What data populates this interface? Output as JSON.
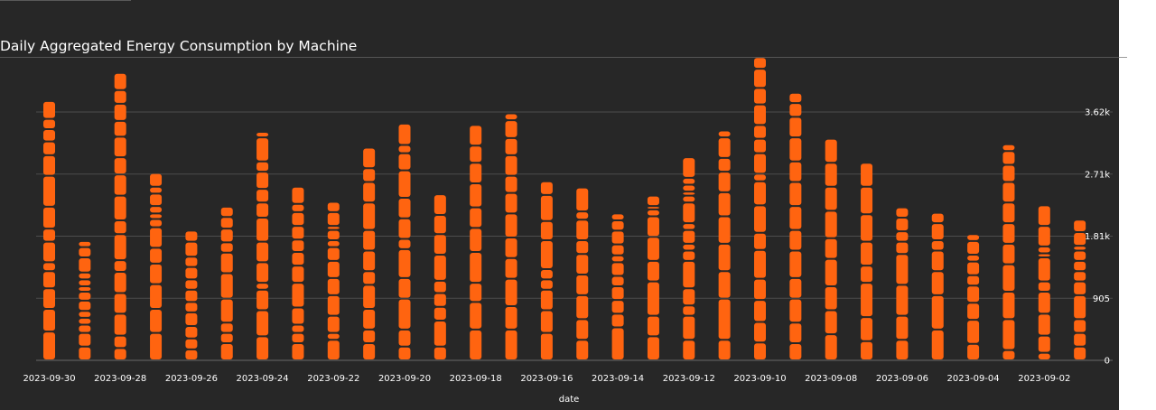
{
  "chart_data": {
    "type": "bar",
    "stacked": true,
    "title": "Daily Aggregated Energy Consumption by Machine",
    "xlabel": "date",
    "ylabel": "",
    "ylim": [
      0,
      3620
    ],
    "yticks": [
      "0",
      "905",
      "1.81k",
      "2.71k",
      "3.62k"
    ],
    "ytick_values": [
      0,
      905,
      1810,
      2715,
      3620
    ],
    "grid": true,
    "legend": "none",
    "bar_color": "#ff6410",
    "categories": [
      "2023-09-30",
      "2023-09-29",
      "2023-09-28",
      "2023-09-27",
      "2023-09-26",
      "2023-09-25",
      "2023-09-24",
      "2023-09-23",
      "2023-09-22",
      "2023-09-21",
      "2023-09-20",
      "2023-09-19",
      "2023-09-18",
      "2023-09-17",
      "2023-09-16",
      "2023-09-15",
      "2023-09-14",
      "2023-09-13",
      "2023-09-12",
      "2023-09-11",
      "2023-09-10",
      "2023-09-09",
      "2023-09-08",
      "2023-09-07",
      "2023-09-06",
      "2023-09-05",
      "2023-09-04",
      "2023-09-03",
      "2023-09-02",
      "2023-09-01"
    ],
    "x_tick_labels": [
      "2023-09-30",
      "2023-09-28",
      "2023-09-26",
      "2023-09-24",
      "2023-09-22",
      "2023-09-20",
      "2023-09-18",
      "2023-09-16",
      "2023-09-14",
      "2023-09-12",
      "2023-09-10",
      "2023-09-08",
      "2023-09-06",
      "2023-09-04",
      "2023-09-02"
    ],
    "segments": [
      [
        420,
        330,
        300,
        250,
        130,
        300,
        190,
        320,
        450,
        300,
        200,
        180,
        150,
        260
      ],
      [
        200,
        200,
        120,
        100,
        100,
        150,
        130,
        80,
        100,
        100,
        220,
        150,
        90
      ],
      [
        180,
        180,
        320,
        300,
        310,
        170,
        380,
        200,
        360,
        310,
        250,
        300,
        230,
        250,
        200,
        250
      ],
      [
        400,
        350,
        360,
        300,
        230,
        300,
        120,
        80,
        110,
        180,
        100,
        200
      ],
      [
        160,
        160,
        180,
        200,
        150,
        180,
        150,
        180,
        150,
        220,
        160
      ],
      [
        250,
        150,
        150,
        350,
        370,
        300,
        150,
        200,
        170,
        150
      ],
      [
        350,
        380,
        300,
        100,
        300,
        300,
        350,
        220,
        200,
        250,
        150,
        350,
        80
      ],
      [
        250,
        150,
        120,
        250,
        360,
        250,
        200,
        180,
        200,
        200,
        120,
        250
      ],
      [
        300,
        100,
        250,
        300,
        250,
        250,
        200,
        100,
        150,
        60,
        200,
        150
      ],
      [
        250,
        200,
        300,
        350,
        200,
        300,
        300,
        400,
        300,
        200,
        300
      ],
      [
        200,
        250,
        450,
        300,
        420,
        150,
        300,
        300,
        400,
        250,
        120,
        310
      ],
      [
        200,
        380,
        200,
        200,
        180,
        380,
        300,
        280,
        300
      ],
      [
        450,
        400,
        280,
        450,
        350,
        300,
        350,
        300,
        250,
        300
      ],
      [
        450,
        340,
        400,
        300,
        300,
        350,
        300,
        250,
        300,
        250,
        260,
        100
      ],
      [
        400,
        330,
        300,
        150,
        150,
        420,
        280,
        380,
        200
      ],
      [
        300,
        300,
        350,
        300,
        300,
        200,
        300,
        120,
        350
      ],
      [
        480,
        200,
        200,
        200,
        150,
        200,
        100,
        160,
        200,
        150,
        100
      ],
      [
        350,
        300,
        500,
        300,
        350,
        300,
        100,
        50,
        150
      ],
      [
        300,
        350,
        150,
        250,
        400,
        150,
        100,
        200,
        100,
        300,
        100,
        60,
        100,
        100,
        300
      ],
      [
        300,
        600,
        400,
        400,
        400,
        350,
        300,
        200,
        300,
        100
      ],
      [
        260,
        300,
        320,
        310,
        420,
        250,
        400,
        350,
        110,
        300,
        210,
        200,
        300,
        240,
        280,
        170
      ],
      [
        250,
        300,
        350,
        300,
        400,
        300,
        350,
        350,
        300,
        350,
        300,
        200,
        150
      ],
      [
        380,
        350,
        350,
        400,
        300,
        400,
        350,
        350,
        350
      ],
      [
        280,
        350,
        500,
        250,
        350,
        400,
        400,
        350
      ],
      [
        300,
        350,
        450,
        450,
        180,
        150,
        200,
        150
      ],
      [
        450,
        500,
        350,
        300,
        150,
        250,
        150
      ],
      [
        240,
        350,
        250,
        250,
        150,
        200,
        100,
        200,
        100
      ],
      [
        150,
        450,
        400,
        400,
        300,
        300,
        300,
        300,
        250,
        200,
        100
      ],
      [
        110,
        250,
        320,
        320,
        150,
        350,
        60,
        100,
        300,
        300
      ],
      [
        200,
        200,
        200,
        350,
        200,
        150,
        150,
        150,
        70,
        200,
        180
      ]
    ]
  }
}
